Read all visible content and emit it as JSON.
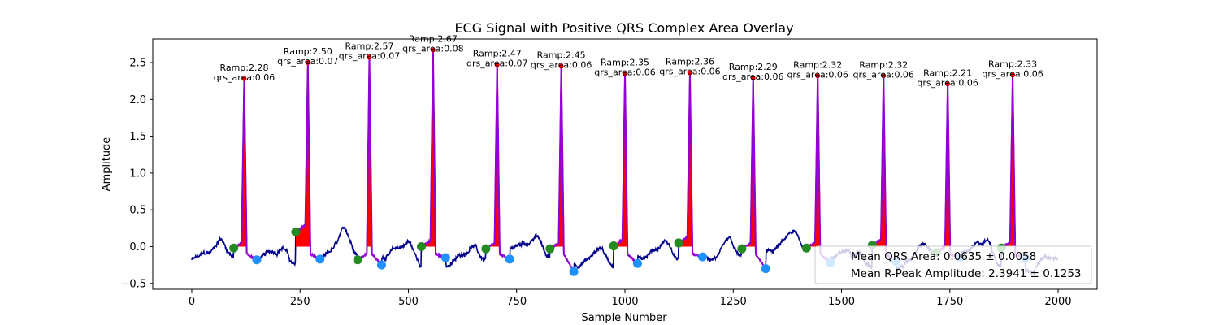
{
  "chart_data": {
    "type": "line",
    "title": "ECG Signal with Positive QRS Complex Area Overlay",
    "xlabel": "Sample Number",
    "ylabel": "Amplitude",
    "xlim": [
      -90,
      2090
    ],
    "ylim": [
      -0.58,
      2.82
    ],
    "xticks": [
      0,
      250,
      500,
      750,
      1000,
      1250,
      1500,
      1750,
      2000
    ],
    "yticks": [
      -0.5,
      0.0,
      0.5,
      1.0,
      1.5,
      2.0,
      2.5
    ],
    "ytick_labels": [
      "−0.5",
      "0.0",
      "0.5",
      "1.0",
      "1.5",
      "2.0",
      "2.5"
    ],
    "grid": false,
    "colors": {
      "signal": "#00008b",
      "qrs_segment": "#9400d3",
      "qrs_fill": "#ff0000",
      "q_point": "#228b22",
      "s_point": "#1e90ff",
      "r_peak": "#ff0000"
    },
    "beats": [
      {
        "r_index": 121,
        "r_amp": 2.28,
        "q_index": 97,
        "q_amp": -0.02,
        "s_index": 150,
        "s_amp": -0.18,
        "ramp_label": "Ramp:2.28",
        "area_label": "qrs_area:0.06"
      },
      {
        "r_index": 268,
        "r_amp": 2.5,
        "q_index": 240,
        "q_amp": 0.2,
        "s_index": 296,
        "s_amp": -0.17,
        "ramp_label": "Ramp:2.50",
        "area_label": "qrs_area:0.07"
      },
      {
        "r_index": 410,
        "r_amp": 2.57,
        "q_index": 383,
        "q_amp": -0.18,
        "s_index": 438,
        "s_amp": -0.25,
        "ramp_label": "Ramp:2.57",
        "area_label": "qrs_area:0.07"
      },
      {
        "r_index": 557,
        "r_amp": 2.67,
        "q_index": 530,
        "q_amp": 0.0,
        "s_index": 586,
        "s_amp": -0.15,
        "ramp_label": "Ramp:2.67",
        "area_label": "qrs_area:0.08"
      },
      {
        "r_index": 705,
        "r_amp": 2.47,
        "q_index": 679,
        "q_amp": -0.03,
        "s_index": 734,
        "s_amp": -0.17,
        "ramp_label": "Ramp:2.47",
        "area_label": "qrs_area:0.07"
      },
      {
        "r_index": 853,
        "r_amp": 2.45,
        "q_index": 827,
        "q_amp": -0.03,
        "s_index": 882,
        "s_amp": -0.34,
        "ramp_label": "Ramp:2.45",
        "area_label": "qrs_area:0.06"
      },
      {
        "r_index": 1000,
        "r_amp": 2.35,
        "q_index": 974,
        "q_amp": 0.01,
        "s_index": 1029,
        "s_amp": -0.23,
        "ramp_label": "Ramp:2.35",
        "area_label": "qrs_area:0.06"
      },
      {
        "r_index": 1150,
        "r_amp": 2.36,
        "q_index": 1124,
        "q_amp": 0.05,
        "s_index": 1179,
        "s_amp": -0.14,
        "ramp_label": "Ramp:2.36",
        "area_label": "qrs_area:0.06"
      },
      {
        "r_index": 1296,
        "r_amp": 2.29,
        "q_index": 1270,
        "q_amp": -0.03,
        "s_index": 1325,
        "s_amp": -0.3,
        "ramp_label": "Ramp:2.29",
        "area_label": "qrs_area:0.06"
      },
      {
        "r_index": 1445,
        "r_amp": 2.32,
        "q_index": 1419,
        "q_amp": -0.02,
        "s_index": 1474,
        "s_amp": -0.22,
        "ramp_label": "Ramp:2.32",
        "area_label": "qrs_area:0.06"
      },
      {
        "r_index": 1597,
        "r_amp": 2.32,
        "q_index": 1571,
        "q_amp": 0.02,
        "s_index": 1626,
        "s_amp": -0.2,
        "ramp_label": "Ramp:2.32",
        "area_label": "qrs_area:0.06"
      },
      {
        "r_index": 1745,
        "r_amp": 2.21,
        "q_index": 1719,
        "q_amp": -0.08,
        "s_index": 1774,
        "s_amp": -0.15,
        "ramp_label": "Ramp:2.21",
        "area_label": "qrs_area:0.06"
      },
      {
        "r_index": 1895,
        "r_amp": 2.33,
        "q_index": 1869,
        "q_amp": -0.02,
        "s_index": 1924,
        "s_amp": -0.16,
        "ramp_label": "Ramp:2.33",
        "area_label": "qrs_area:0.06"
      }
    ],
    "legend": {
      "placement": "lower right",
      "entries": [
        "Mean QRS Area: 0.0635 ± 0.0058",
        "Mean R-Peak Amplitude: 2.3941 ± 0.1253"
      ]
    }
  }
}
